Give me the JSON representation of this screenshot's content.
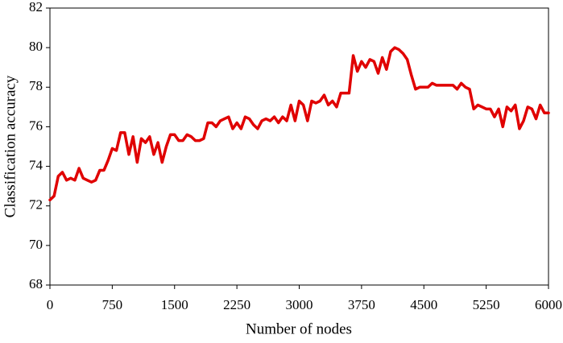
{
  "chart_data": {
    "type": "line",
    "x_label": "Number of nodes",
    "y_label": "Classification accuracy",
    "x": [
      0,
      50,
      100,
      150,
      200,
      250,
      300,
      350,
      400,
      450,
      500,
      550,
      600,
      650,
      700,
      750,
      800,
      850,
      900,
      950,
      1000,
      1050,
      1100,
      1150,
      1200,
      1250,
      1300,
      1350,
      1400,
      1450,
      1500,
      1550,
      1600,
      1650,
      1700,
      1750,
      1800,
      1850,
      1900,
      1950,
      2000,
      2050,
      2100,
      2150,
      2200,
      2250,
      2300,
      2350,
      2400,
      2450,
      2500,
      2550,
      2600,
      2650,
      2700,
      2750,
      2800,
      2850,
      2900,
      2950,
      3000,
      3050,
      3100,
      3150,
      3200,
      3250,
      3300,
      3350,
      3400,
      3450,
      3500,
      3550,
      3600,
      3650,
      3700,
      3750,
      3800,
      3850,
      3900,
      3950,
      4000,
      4050,
      4100,
      4150,
      4200,
      4250,
      4300,
      4350,
      4400,
      4450,
      4500,
      4550,
      4600,
      4650,
      4700,
      4750,
      4800,
      4850,
      4900,
      4950,
      5000,
      5050,
      5100,
      5150,
      5200,
      5250,
      5300,
      5350,
      5400,
      5450,
      5500,
      5550,
      5600,
      5650,
      5700,
      5750,
      5800,
      5850,
      5900,
      5950,
      6000
    ],
    "series": [
      {
        "name": "Classification accuracy",
        "color": "#e00000",
        "values": [
          72.3,
          72.5,
          73.5,
          73.7,
          73.3,
          73.4,
          73.3,
          73.9,
          73.4,
          73.3,
          73.2,
          73.3,
          73.8,
          73.8,
          74.3,
          74.9,
          74.8,
          75.7,
          75.7,
          74.6,
          75.5,
          74.2,
          75.4,
          75.2,
          75.5,
          74.6,
          75.2,
          74.2,
          75.0,
          75.6,
          75.6,
          75.3,
          75.3,
          75.6,
          75.5,
          75.3,
          75.3,
          75.4,
          76.2,
          76.2,
          76.0,
          76.3,
          76.4,
          76.5,
          75.9,
          76.2,
          75.9,
          76.5,
          76.4,
          76.1,
          75.9,
          76.3,
          76.4,
          76.3,
          76.5,
          76.2,
          76.5,
          76.3,
          77.1,
          76.3,
          77.3,
          77.1,
          76.3,
          77.3,
          77.2,
          77.3,
          77.6,
          77.1,
          77.3,
          77.0,
          77.7,
          77.7,
          77.7,
          79.6,
          78.8,
          79.3,
          79.0,
          79.4,
          79.3,
          78.7,
          79.5,
          78.9,
          79.8,
          80.0,
          79.9,
          79.7,
          79.4,
          78.6,
          77.9,
          78.0,
          78.0,
          78.0,
          78.2,
          78.1,
          78.1,
          78.1,
          78.1,
          78.1,
          77.9,
          78.2,
          78.0,
          77.9,
          76.9,
          77.1,
          77.0,
          76.9,
          76.9,
          76.5,
          76.9,
          76.0,
          77.0,
          76.8,
          77.1,
          75.9,
          76.3,
          77.0,
          76.9,
          76.4,
          77.1,
          76.7,
          76.7
        ]
      }
    ],
    "xlim": [
      0,
      6000
    ],
    "xticks": [
      0,
      750,
      1500,
      2250,
      3000,
      3750,
      4500,
      5250,
      6000
    ],
    "ylim": [
      68,
      82
    ],
    "yticks": [
      68,
      70,
      72,
      74,
      76,
      78,
      80,
      82
    ]
  }
}
